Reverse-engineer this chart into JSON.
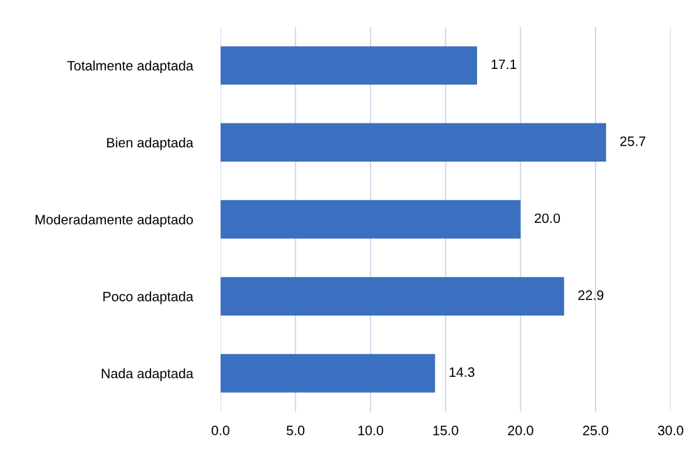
{
  "chart_data": {
    "type": "bar",
    "orientation": "horizontal",
    "categories": [
      "Totalmente adaptada",
      "Bien adaptada",
      "Moderadamente adaptado",
      "Poco adaptada",
      "Nada adaptada"
    ],
    "values": [
      17.1,
      25.7,
      20.0,
      22.9,
      14.3
    ],
    "value_labels": [
      "17.1",
      "25.7",
      "20.0",
      "22.9",
      "14.3"
    ],
    "color": "#3b6fbf",
    "xlim": [
      0,
      30
    ],
    "xticks": [
      {
        "value": 0,
        "label": "0.0"
      },
      {
        "value": 5,
        "label": "5.0"
      },
      {
        "value": 10,
        "label": "10.0"
      },
      {
        "value": 15,
        "label": "15.0"
      },
      {
        "value": 20,
        "label": "20.0"
      },
      {
        "value": 25,
        "label": "25.0"
      },
      {
        "value": 30,
        "label": "30.0"
      }
    ],
    "grid": "x",
    "legend": false
  }
}
